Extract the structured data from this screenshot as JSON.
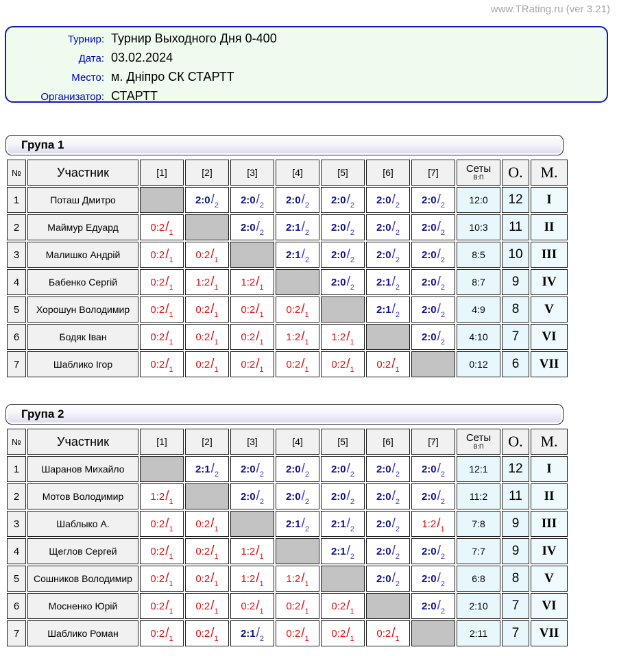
{
  "site_credit": "www.TRating.ru (ver 3.21)",
  "symbols": {
    "slash": "/"
  },
  "colors": {
    "win_blue": "#10108c",
    "loss_red": "#e01010",
    "diagonal_gray": "#c3c3c3",
    "sets_bg": "#e8f7fb",
    "header_bg": "#f1f1f1",
    "info_box_bg": "#eefbee",
    "info_box_border": "#1414cc",
    "label_blue": "#0000bb"
  },
  "info": {
    "rows": [
      {
        "label": "Турнир:",
        "value": "Турнир Выходного Дня 0-400"
      },
      {
        "label": "Дата:",
        "value": "03.02.2024"
      },
      {
        "label": "Место:",
        "value": "м. Дніпро СК СТАРТТ"
      },
      {
        "label": "Организатор:",
        "value": "СТАРТТ"
      }
    ]
  },
  "table_headers": {
    "num": "№",
    "participant": "Участник",
    "rounds": [
      "[1]",
      "[2]",
      "[3]",
      "[4]",
      "[5]",
      "[6]",
      "[7]"
    ],
    "sets": "Сеты",
    "sets_sub": "В:П",
    "points": "О.",
    "place": "М."
  },
  "groups": [
    {
      "title": "Група 1",
      "players": [
        {
          "num": "1",
          "name": "Поташ Дмитро",
          "cells": [
            null,
            {
              "v": "2:0",
              "p": "2",
              "r": "w"
            },
            {
              "v": "2:0",
              "p": "2",
              "r": "w"
            },
            {
              "v": "2:0",
              "p": "2",
              "r": "w"
            },
            {
              "v": "2:0",
              "p": "2",
              "r": "w"
            },
            {
              "v": "2:0",
              "p": "2",
              "r": "w"
            },
            {
              "v": "2:0",
              "p": "2",
              "r": "w"
            }
          ],
          "sets": "12:0",
          "points": "12",
          "place": "I"
        },
        {
          "num": "2",
          "name": "Маймур Едуард",
          "cells": [
            {
              "v": "0:2",
              "p": "1",
              "r": "l"
            },
            null,
            {
              "v": "2:0",
              "p": "2",
              "r": "w"
            },
            {
              "v": "2:1",
              "p": "2",
              "r": "w"
            },
            {
              "v": "2:0",
              "p": "2",
              "r": "w"
            },
            {
              "v": "2:0",
              "p": "2",
              "r": "w"
            },
            {
              "v": "2:0",
              "p": "2",
              "r": "w"
            }
          ],
          "sets": "10:3",
          "points": "11",
          "place": "II"
        },
        {
          "num": "3",
          "name": "Малишко Андрій",
          "cells": [
            {
              "v": "0:2",
              "p": "1",
              "r": "l"
            },
            {
              "v": "0:2",
              "p": "1",
              "r": "l"
            },
            null,
            {
              "v": "2:1",
              "p": "2",
              "r": "w"
            },
            {
              "v": "2:0",
              "p": "2",
              "r": "w"
            },
            {
              "v": "2:0",
              "p": "2",
              "r": "w"
            },
            {
              "v": "2:0",
              "p": "2",
              "r": "w"
            }
          ],
          "sets": "8:5",
          "points": "10",
          "place": "III"
        },
        {
          "num": "4",
          "name": "Бабенко Сергій",
          "cells": [
            {
              "v": "0:2",
              "p": "1",
              "r": "l"
            },
            {
              "v": "1:2",
              "p": "1",
              "r": "l"
            },
            {
              "v": "1:2",
              "p": "1",
              "r": "l"
            },
            null,
            {
              "v": "2:0",
              "p": "2",
              "r": "w"
            },
            {
              "v": "2:1",
              "p": "2",
              "r": "w"
            },
            {
              "v": "2:0",
              "p": "2",
              "r": "w"
            }
          ],
          "sets": "8:7",
          "points": "9",
          "place": "IV"
        },
        {
          "num": "5",
          "name": "Хорошун Володимир",
          "cells": [
            {
              "v": "0:2",
              "p": "1",
              "r": "l"
            },
            {
              "v": "0:2",
              "p": "1",
              "r": "l"
            },
            {
              "v": "0:2",
              "p": "1",
              "r": "l"
            },
            {
              "v": "0:2",
              "p": "1",
              "r": "l"
            },
            null,
            {
              "v": "2:1",
              "p": "2",
              "r": "w"
            },
            {
              "v": "2:0",
              "p": "2",
              "r": "w"
            }
          ],
          "sets": "4:9",
          "points": "8",
          "place": "V"
        },
        {
          "num": "6",
          "name": "Бодяк Іван",
          "cells": [
            {
              "v": "0:2",
              "p": "1",
              "r": "l"
            },
            {
              "v": "0:2",
              "p": "1",
              "r": "l"
            },
            {
              "v": "0:2",
              "p": "1",
              "r": "l"
            },
            {
              "v": "1:2",
              "p": "1",
              "r": "l"
            },
            {
              "v": "1:2",
              "p": "1",
              "r": "l"
            },
            null,
            {
              "v": "2:0",
              "p": "2",
              "r": "w"
            }
          ],
          "sets": "4:10",
          "points": "7",
          "place": "VI"
        },
        {
          "num": "7",
          "name": "Шаблико Ігор",
          "cells": [
            {
              "v": "0:2",
              "p": "1",
              "r": "l"
            },
            {
              "v": "0:2",
              "p": "1",
              "r": "l"
            },
            {
              "v": "0:2",
              "p": "1",
              "r": "l"
            },
            {
              "v": "0:2",
              "p": "1",
              "r": "l"
            },
            {
              "v": "0:2",
              "p": "1",
              "r": "l"
            },
            {
              "v": "0:2",
              "p": "1",
              "r": "l"
            },
            null
          ],
          "sets": "0:12",
          "points": "6",
          "place": "VII"
        }
      ]
    },
    {
      "title": "Група 2",
      "players": [
        {
          "num": "1",
          "name": "Шаранов Михайло",
          "cells": [
            null,
            {
              "v": "2:1",
              "p": "2",
              "r": "w"
            },
            {
              "v": "2:0",
              "p": "2",
              "r": "w"
            },
            {
              "v": "2:0",
              "p": "2",
              "r": "w"
            },
            {
              "v": "2:0",
              "p": "2",
              "r": "w"
            },
            {
              "v": "2:0",
              "p": "2",
              "r": "w"
            },
            {
              "v": "2:0",
              "p": "2",
              "r": "w"
            }
          ],
          "sets": "12:1",
          "points": "12",
          "place": "I"
        },
        {
          "num": "2",
          "name": "Мотов Володимир",
          "cells": [
            {
              "v": "1:2",
              "p": "1",
              "r": "l"
            },
            null,
            {
              "v": "2:0",
              "p": "2",
              "r": "w"
            },
            {
              "v": "2:0",
              "p": "2",
              "r": "w"
            },
            {
              "v": "2:0",
              "p": "2",
              "r": "w"
            },
            {
              "v": "2:0",
              "p": "2",
              "r": "w"
            },
            {
              "v": "2:0",
              "p": "2",
              "r": "w"
            }
          ],
          "sets": "11:2",
          "points": "11",
          "place": "II"
        },
        {
          "num": "3",
          "name": "Шаблыко А.",
          "cells": [
            {
              "v": "0:2",
              "p": "1",
              "r": "l"
            },
            {
              "v": "0:2",
              "p": "1",
              "r": "l"
            },
            null,
            {
              "v": "2:1",
              "p": "2",
              "r": "w"
            },
            {
              "v": "2:1",
              "p": "2",
              "r": "w"
            },
            {
              "v": "2:0",
              "p": "2",
              "r": "w"
            },
            {
              "v": "1:2",
              "p": "1",
              "r": "l"
            }
          ],
          "sets": "7:8",
          "points": "9",
          "place": "III"
        },
        {
          "num": "4",
          "name": "Щеглов Сергей",
          "cells": [
            {
              "v": "0:2",
              "p": "1",
              "r": "l"
            },
            {
              "v": "0:2",
              "p": "1",
              "r": "l"
            },
            {
              "v": "1:2",
              "p": "1",
              "r": "l"
            },
            null,
            {
              "v": "2:1",
              "p": "2",
              "r": "w"
            },
            {
              "v": "2:0",
              "p": "2",
              "r": "w"
            },
            {
              "v": "2:0",
              "p": "2",
              "r": "w"
            }
          ],
          "sets": "7:7",
          "points": "9",
          "place": "IV"
        },
        {
          "num": "5",
          "name": "Сошников Володимир",
          "cells": [
            {
              "v": "0:2",
              "p": "1",
              "r": "l"
            },
            {
              "v": "0:2",
              "p": "1",
              "r": "l"
            },
            {
              "v": "1:2",
              "p": "1",
              "r": "l"
            },
            {
              "v": "1:2",
              "p": "1",
              "r": "l"
            },
            null,
            {
              "v": "2:0",
              "p": "2",
              "r": "w"
            },
            {
              "v": "2:0",
              "p": "2",
              "r": "w"
            }
          ],
          "sets": "6:8",
          "points": "8",
          "place": "V"
        },
        {
          "num": "6",
          "name": "Мосненко Юрій",
          "cells": [
            {
              "v": "0:2",
              "p": "1",
              "r": "l"
            },
            {
              "v": "0:2",
              "p": "1",
              "r": "l"
            },
            {
              "v": "0:2",
              "p": "1",
              "r": "l"
            },
            {
              "v": "0:2",
              "p": "1",
              "r": "l"
            },
            {
              "v": "0:2",
              "p": "1",
              "r": "l"
            },
            null,
            {
              "v": "2:0",
              "p": "2",
              "r": "w"
            }
          ],
          "sets": "2:10",
          "points": "7",
          "place": "VI"
        },
        {
          "num": "7",
          "name": "Шаблико Роман",
          "cells": [
            {
              "v": "0:2",
              "p": "1",
              "r": "l"
            },
            {
              "v": "0:2",
              "p": "1",
              "r": "l"
            },
            {
              "v": "2:1",
              "p": "2",
              "r": "w"
            },
            {
              "v": "0:2",
              "p": "1",
              "r": "l"
            },
            {
              "v": "0:2",
              "p": "1",
              "r": "l"
            },
            {
              "v": "0:2",
              "p": "1",
              "r": "l"
            },
            null
          ],
          "sets": "2:11",
          "points": "7",
          "place": "VII"
        }
      ]
    }
  ]
}
